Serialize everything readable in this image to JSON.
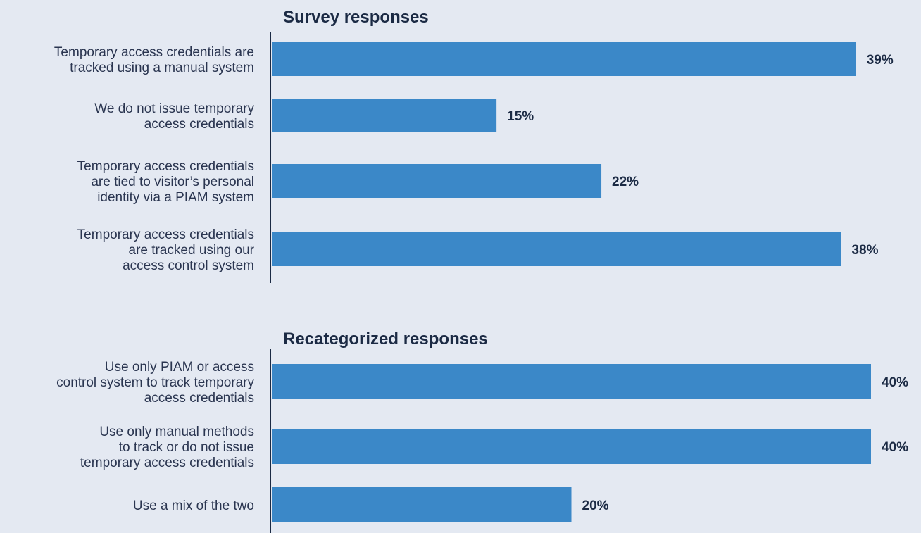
{
  "colors": {
    "bar": "#3b88c8",
    "text": "#1b2a44",
    "label": "#2a3550",
    "background": "#e4e9f2"
  },
  "chart_data": [
    {
      "type": "bar",
      "orientation": "horizontal",
      "title": "Survey responses",
      "xlim": [
        0,
        40
      ],
      "unit": "%",
      "categories": [
        [
          "Temporary access credentials are",
          "tracked using a manual system"
        ],
        [
          "We do not issue temporary",
          "access credentials"
        ],
        [
          "Temporary access credentials",
          "are tied to visitor’s personal",
          "identity via a PIAM system"
        ],
        [
          "Temporary access credentials",
          "are tracked using our",
          "access control system"
        ]
      ],
      "values": [
        39,
        15,
        22,
        38
      ],
      "value_labels": [
        "39%",
        "15%",
        "22%",
        "38%"
      ]
    },
    {
      "type": "bar",
      "orientation": "horizontal",
      "title": "Recategorized responses",
      "xlim": [
        0,
        40
      ],
      "unit": "%",
      "categories": [
        [
          "Use only PIAM or access",
          "control system to track temporary",
          "access credentials"
        ],
        [
          "Use only manual methods",
          "to track or do not issue",
          "temporary access credentials"
        ],
        [
          "Use a mix of the two"
        ]
      ],
      "values": [
        40,
        40,
        20
      ],
      "value_labels": [
        "40%",
        "40%",
        "20%"
      ]
    }
  ]
}
